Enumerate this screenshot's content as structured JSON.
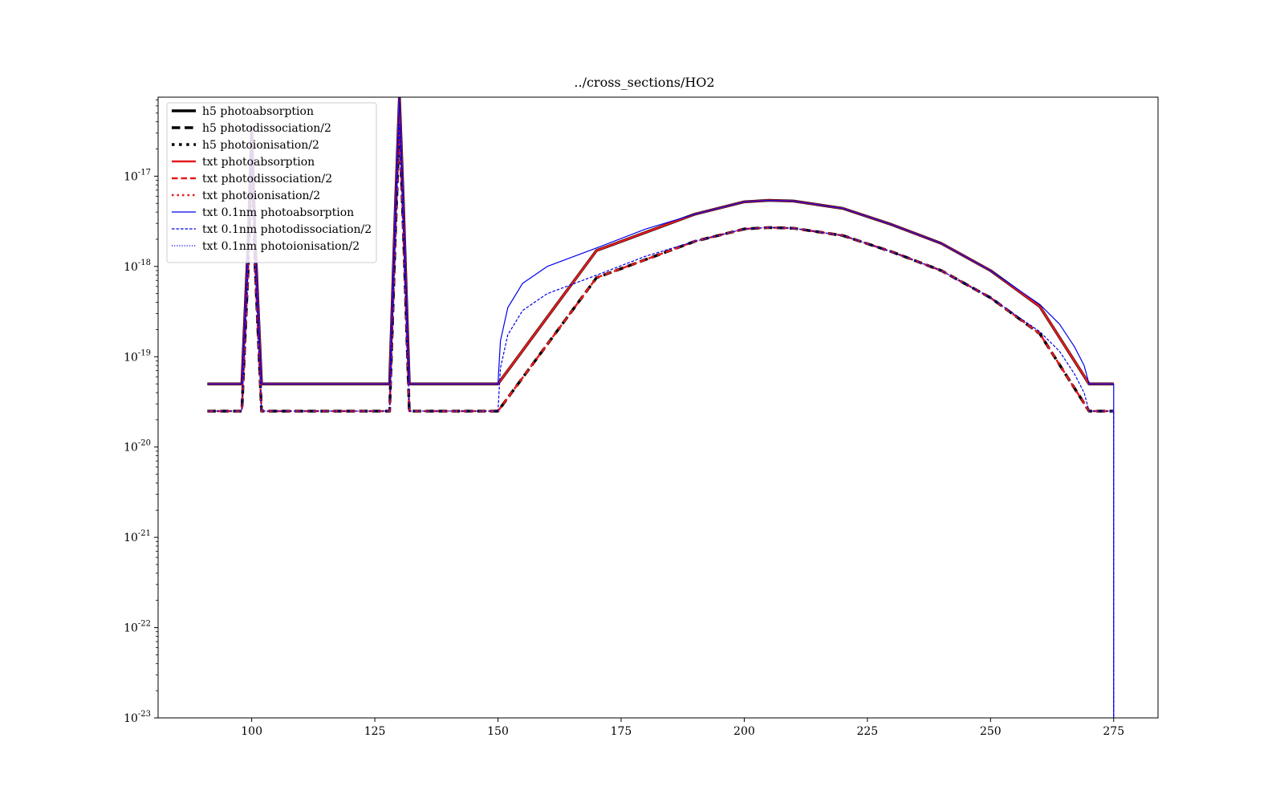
{
  "chart_data": {
    "type": "line",
    "title": "../cross_sections/HO2",
    "xlabel": "",
    "ylabel": "",
    "xlim": [
      81,
      284
    ],
    "ylim": [
      1e-23,
      7.5e-17
    ],
    "yscale": "log",
    "xticks": [
      100,
      125,
      150,
      175,
      200,
      225,
      250,
      275
    ],
    "yticks": [
      1e-23,
      1e-22,
      1e-21,
      1e-20,
      1e-19,
      1e-18,
      1e-17
    ],
    "ytick_labels": [
      {
        "base": "10",
        "exp": "-23"
      },
      {
        "base": "10",
        "exp": "-22"
      },
      {
        "base": "10",
        "exp": "-21"
      },
      {
        "base": "10",
        "exp": "-20"
      },
      {
        "base": "10",
        "exp": "-19"
      },
      {
        "base": "10",
        "exp": "-18"
      },
      {
        "base": "10",
        "exp": "-17"
      }
    ],
    "grid": false,
    "legend_position": "upper left",
    "series": [
      {
        "name": "h5 photoabsorption",
        "color": "#000000",
        "style": "solid",
        "width": 3.5,
        "x": [
          91,
          98,
          99.3,
          100,
          100.7,
          102,
          128,
          129.2,
          130,
          130.8,
          132,
          150,
          170,
          190,
          200,
          205,
          210,
          220,
          230,
          240,
          250,
          260,
          270,
          275
        ],
        "y": [
          5e-20,
          5e-20,
          2e-18,
          3.5e-17,
          2e-18,
          5e-20,
          5e-20,
          5e-18,
          7.5e-17,
          5e-18,
          5e-20,
          5e-20,
          1.5e-18,
          3.8e-18,
          5.2e-18,
          5.4e-18,
          5.3e-18,
          4.4e-18,
          2.9e-18,
          1.8e-18,
          9e-19,
          3.6e-19,
          5e-20,
          5e-20
        ]
      },
      {
        "name": "h5 photodissociation/2",
        "color": "#000000",
        "style": "dashed",
        "width": 3.5,
        "x": [
          91,
          98,
          99.3,
          100,
          100.7,
          102,
          128,
          129.2,
          130,
          130.8,
          132,
          150,
          170,
          190,
          200,
          205,
          210,
          220,
          230,
          240,
          250,
          260,
          270,
          275
        ],
        "y": [
          2.5e-20,
          2.5e-20,
          1e-18,
          1.75e-17,
          1e-18,
          2.5e-20,
          2.5e-20,
          2.5e-18,
          3.75e-17,
          2.5e-18,
          2.5e-20,
          2.5e-20,
          7.5e-19,
          1.9e-18,
          2.6e-18,
          2.7e-18,
          2.65e-18,
          2.2e-18,
          1.45e-18,
          9e-19,
          4.5e-19,
          1.8e-19,
          2.5e-20,
          2.5e-20
        ]
      },
      {
        "name": "h5 photoionisation/2",
        "color": "#000000",
        "style": "dotted",
        "width": 3.5,
        "x": [],
        "y": []
      },
      {
        "name": "txt photoabsorption",
        "color": "#e31a1c",
        "style": "solid",
        "width": 2.5,
        "x": [
          91,
          98,
          99.3,
          100,
          100.7,
          102,
          128,
          129.2,
          130,
          130.8,
          132,
          150,
          170,
          190,
          200,
          205,
          210,
          220,
          230,
          240,
          250,
          260,
          270,
          275
        ],
        "y": [
          5e-20,
          5e-20,
          2e-18,
          3.5e-17,
          2e-18,
          5e-20,
          5e-20,
          5e-18,
          7.5e-17,
          5e-18,
          5e-20,
          5e-20,
          1.5e-18,
          3.8e-18,
          5.2e-18,
          5.4e-18,
          5.3e-18,
          4.4e-18,
          2.9e-18,
          1.8e-18,
          9e-19,
          3.6e-19,
          5e-20,
          5e-20
        ]
      },
      {
        "name": "txt photodissociation/2",
        "color": "#e31a1c",
        "style": "dashed",
        "width": 2.5,
        "x": [
          91,
          98,
          99.3,
          100,
          100.7,
          102,
          128,
          129.2,
          130,
          130.8,
          132,
          150,
          170,
          190,
          200,
          205,
          210,
          220,
          230,
          240,
          250,
          260,
          270,
          275
        ],
        "y": [
          2.5e-20,
          2.5e-20,
          1e-18,
          1.75e-17,
          1e-18,
          2.5e-20,
          2.5e-20,
          2.5e-18,
          3.75e-17,
          2.5e-18,
          2.5e-20,
          2.5e-20,
          7.5e-19,
          1.9e-18,
          2.6e-18,
          2.7e-18,
          2.65e-18,
          2.2e-18,
          1.45e-18,
          9e-19,
          4.5e-19,
          1.8e-19,
          2.5e-20,
          2.5e-20
        ]
      },
      {
        "name": "txt photoionisation/2",
        "color": "#e31a1c",
        "style": "dotted",
        "width": 2.5,
        "x": [],
        "y": []
      },
      {
        "name": "txt 0.1nm photoabsorption",
        "color": "#0000ee",
        "style": "solid",
        "width": 1.2,
        "x": [
          91,
          98,
          99.3,
          100,
          100.7,
          102,
          128,
          129.2,
          130,
          130.8,
          132,
          150,
          150.5,
          152,
          155,
          160,
          170,
          180,
          190,
          200,
          205,
          210,
          220,
          230,
          240,
          250,
          260,
          264,
          267,
          269,
          270,
          275,
          275,
          275
        ],
        "y": [
          5e-20,
          5e-20,
          2e-18,
          3.5e-17,
          2e-18,
          5e-20,
          5e-20,
          5e-18,
          7.5e-17,
          5e-18,
          5e-20,
          5e-20,
          1.5e-19,
          3.5e-19,
          6.5e-19,
          1e-18,
          1.6e-18,
          2.6e-18,
          3.8e-18,
          5.2e-18,
          5.4e-18,
          5.3e-18,
          4.4e-18,
          2.9e-18,
          1.8e-18,
          9e-19,
          3.8e-19,
          2.3e-19,
          1.3e-19,
          8e-20,
          5e-20,
          5e-20,
          5e-20,
          1e-23
        ]
      },
      {
        "name": "txt 0.1nm photodissociation/2",
        "color": "#0000ee",
        "style": "dashed",
        "width": 1.2,
        "x": [
          91,
          98,
          99.3,
          100,
          100.7,
          102,
          128,
          129.2,
          130,
          130.8,
          132,
          150,
          150.5,
          152,
          155,
          160,
          170,
          180,
          190,
          200,
          205,
          210,
          220,
          230,
          240,
          250,
          260,
          264,
          267,
          269,
          270,
          275,
          275
        ],
        "y": [
          2.5e-20,
          2.5e-20,
          1e-18,
          1.75e-17,
          1e-18,
          2.5e-20,
          2.5e-20,
          2.5e-18,
          3.75e-17,
          2.5e-18,
          2.5e-20,
          2.5e-20,
          7.5e-20,
          1.75e-19,
          3.25e-19,
          5e-19,
          8e-19,
          1.3e-18,
          1.9e-18,
          2.6e-18,
          2.7e-18,
          2.65e-18,
          2.2e-18,
          1.45e-18,
          9e-19,
          4.5e-19,
          1.9e-19,
          1.15e-19,
          6.5e-20,
          4e-20,
          2.5e-20,
          2.5e-20,
          1e-23
        ]
      },
      {
        "name": "txt 0.1nm photoionisation/2",
        "color": "#0000ee",
        "style": "dotted",
        "width": 1.2,
        "x": [],
        "y": []
      }
    ]
  }
}
